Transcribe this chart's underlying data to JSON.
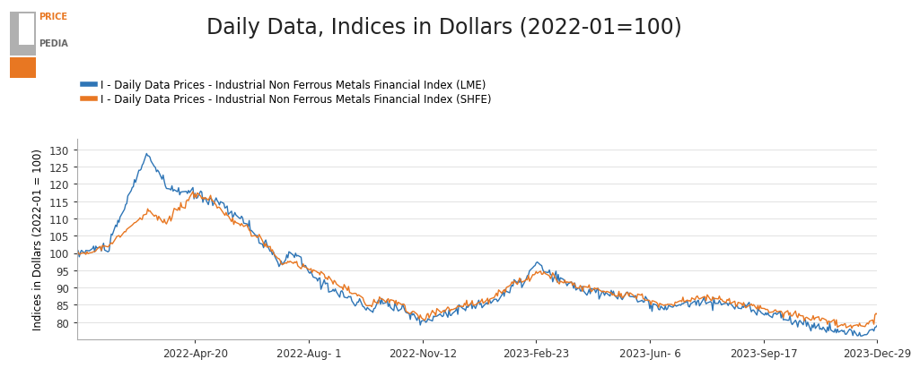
{
  "title": "Daily Data, Indices in Dollars (2022-01=100)",
  "ylabel": "Indices in Dollars (2022-01 = 100)",
  "lme_label": "I - Daily Data Prices - Industrial Non Ferrous Metals Financial Index (LME)",
  "shfe_label": "I - Daily Data Prices - Industrial Non Ferrous Metals Financial Index (SHFE)",
  "lme_color": "#2e75b6",
  "shfe_color": "#e87722",
  "ylim": [
    75,
    133
  ],
  "yticks": [
    80,
    85,
    90,
    95,
    100,
    105,
    110,
    115,
    120,
    125,
    130
  ],
  "xtick_labels": [
    "2022-Apr-20",
    "2022-Aug- 1",
    "2022-Nov-12",
    "2023-Feb-23",
    "2023-Jun- 6",
    "2023-Sep-17",
    "2023-Dec-29"
  ],
  "bg_color": "#ffffff",
  "line_width": 1.0,
  "title_fontsize": 17,
  "label_fontsize": 8.5,
  "tick_fontsize": 8.5,
  "legend_fontsize": 8.5
}
